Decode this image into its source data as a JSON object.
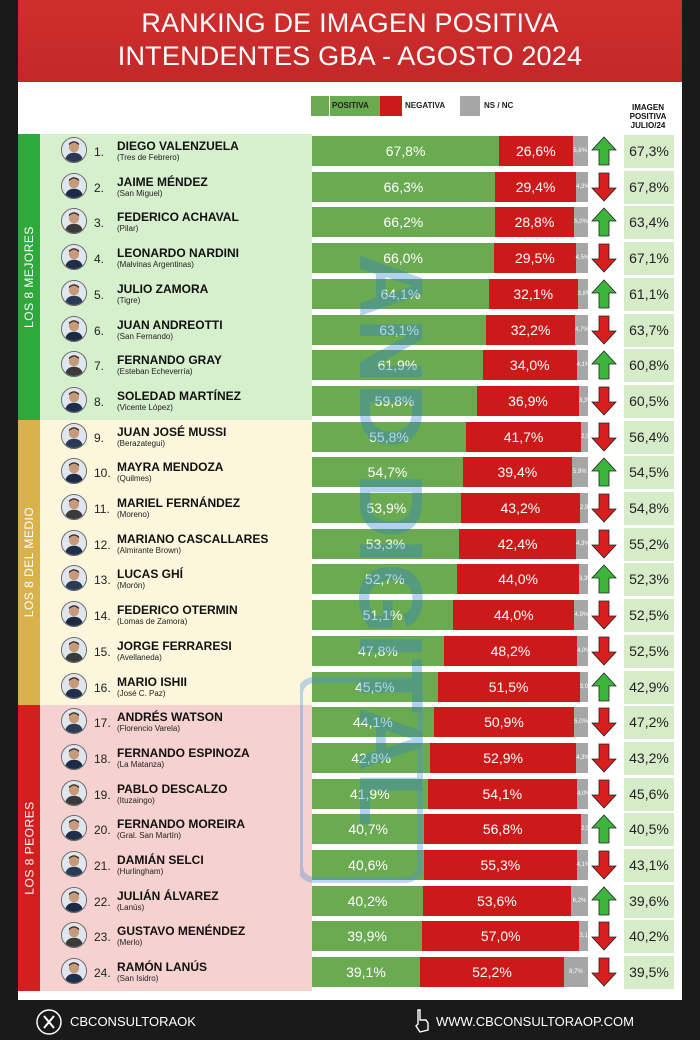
{
  "header": {
    "title_line1": "RANKING DE IMAGEN POSITIVA",
    "title_line2": "INTENDENTES GBA - AGOSTO 2024"
  },
  "legend": {
    "positiva": "POSITIVA",
    "negativa": "NEGATIVA",
    "nsnc": "NS / NC"
  },
  "julio_header": {
    "line1": "IMAGEN",
    "line2": "POSITIVA",
    "line3": "JULIO/24"
  },
  "groups": [
    {
      "label": "LOS 8 MEJORES",
      "color": "#2eaa3c",
      "bg": "#d6efcd"
    },
    {
      "label": "LOS 8 DEL MEDIO",
      "color": "#d9b34a",
      "bg": "#fbf6dc"
    },
    {
      "label": "LOS 8 PEORES",
      "color": "#d41f1f",
      "bg": "#f5d1cf"
    }
  ],
  "colors": {
    "positiva": "#6aaa50",
    "negativa": "#cc1a1a",
    "nsnc": "#a6a6a6",
    "arrow_up": "#3bb53b",
    "arrow_down": "#d81e1e"
  },
  "chart_data": {
    "type": "bar",
    "stacked": true,
    "orientation": "horizontal",
    "title": "RANKING DE IMAGEN POSITIVA INTENDENTES GBA - AGOSTO 2024",
    "xlim": [
      0,
      100
    ],
    "legend_position": "top",
    "series": [
      {
        "name": "POSITIVA",
        "values": [
          67.8,
          66.3,
          66.2,
          66.0,
          64.1,
          63.1,
          61.9,
          59.8,
          55.8,
          54.7,
          53.9,
          53.3,
          52.7,
          51.1,
          47.8,
          45.5,
          44.1,
          42.8,
          41.9,
          40.7,
          40.6,
          40.2,
          39.9,
          39.1
        ]
      },
      {
        "name": "NEGATIVA",
        "values": [
          26.6,
          29.4,
          28.8,
          29.5,
          32.1,
          32.2,
          34.0,
          36.9,
          41.7,
          39.4,
          43.2,
          42.4,
          44.0,
          44.0,
          48.2,
          51.5,
          50.9,
          52.9,
          54.1,
          56.8,
          55.3,
          53.6,
          57.0,
          52.2
        ]
      },
      {
        "name": "NS / NC",
        "values": [
          5.6,
          4.3,
          5.0,
          4.5,
          3.8,
          4.7,
          4.1,
          3.3,
          2.5,
          5.9,
          2.9,
          4.3,
          3.3,
          4.9,
          4.0,
          3.0,
          5.0,
          4.3,
          4.0,
          2.5,
          4.1,
          6.2,
          3.1,
          8.7
        ]
      }
    ],
    "rows": [
      {
        "rank": "1.",
        "name": "DIEGO VALENZUELA",
        "district": "(Tres de Febrero)",
        "positiva": "67,8%",
        "negativa": "26,6%",
        "nsnc": "5,6%",
        "trend": "up",
        "julio": "67,3%"
      },
      {
        "rank": "2.",
        "name": "JAIME MÉNDEZ",
        "district": "(San Miguel)",
        "positiva": "66,3%",
        "negativa": "29,4%",
        "nsnc": "4,3%",
        "trend": "down",
        "julio": "67,8%"
      },
      {
        "rank": "3.",
        "name": "FEDERICO ACHAVAL",
        "district": "(Pilar)",
        "positiva": "66,2%",
        "negativa": "28,8%",
        "nsnc": "5,0%",
        "trend": "up",
        "julio": "63,4%"
      },
      {
        "rank": "4.",
        "name": "LEONARDO NARDINI",
        "district": "(Malvinas Argentinas)",
        "positiva": "66,0%",
        "negativa": "29,5%",
        "nsnc": "4,5%",
        "trend": "down",
        "julio": "67,1%"
      },
      {
        "rank": "5.",
        "name": "JULIO ZAMORA",
        "district": "(Tigre)",
        "positiva": "64,1%",
        "negativa": "32,1%",
        "nsnc": "3,8%",
        "trend": "up",
        "julio": "61,1%"
      },
      {
        "rank": "6.",
        "name": "JUAN ANDREOTTI",
        "district": "(San Fernando)",
        "positiva": "63,1%",
        "negativa": "32,2%",
        "nsnc": "4,7%",
        "trend": "down",
        "julio": "63,7%"
      },
      {
        "rank": "7.",
        "name": "FERNANDO GRAY",
        "district": "(Esteban Echeverría)",
        "positiva": "61,9%",
        "negativa": "34,0%",
        "nsnc": "4,1%",
        "trend": "up",
        "julio": "60,8%"
      },
      {
        "rank": "8.",
        "name": "SOLEDAD MARTÍNEZ",
        "district": "(Vicente López)",
        "positiva": "59,8%",
        "negativa": "36,9%",
        "nsnc": "3,3%",
        "trend": "down",
        "julio": "60,5%"
      },
      {
        "rank": "9.",
        "name": "JUAN JOSÉ MUSSI",
        "district": "(Berazategui)",
        "positiva": "55,8%",
        "negativa": "41,7%",
        "nsnc": "2,5%",
        "trend": "down",
        "julio": "56,4%"
      },
      {
        "rank": "10.",
        "name": "MAYRA MENDOZA",
        "district": "(Quilmes)",
        "positiva": "54,7%",
        "negativa": "39,4%",
        "nsnc": "5,9%",
        "trend": "up",
        "julio": "54,5%"
      },
      {
        "rank": "11.",
        "name": "MARIEL FERNÁNDEZ",
        "district": "(Moreno)",
        "positiva": "53,9%",
        "negativa": "43,2%",
        "nsnc": "2,9%",
        "trend": "down",
        "julio": "54,8%"
      },
      {
        "rank": "12.",
        "name": "MARIANO CASCALLARES",
        "district": "(Almirante Brown)",
        "positiva": "53,3%",
        "negativa": "42,4%",
        "nsnc": "4,3%",
        "trend": "down",
        "julio": "55,2%"
      },
      {
        "rank": "13.",
        "name": "LUCAS GHÍ",
        "district": "(Morón)",
        "positiva": "52,7%",
        "negativa": "44,0%",
        "nsnc": "3,3%",
        "trend": "up",
        "julio": "52,3%"
      },
      {
        "rank": "14.",
        "name": "FEDERICO OTERMIN",
        "district": "(Lomas de Zamora)",
        "positiva": "51,1%",
        "negativa": "44,0%",
        "nsnc": "4,9%",
        "trend": "down",
        "julio": "52,5%"
      },
      {
        "rank": "15.",
        "name": "JORGE FERRARESI",
        "district": "(Avellaneda)",
        "positiva": "47,8%",
        "negativa": "48,2%",
        "nsnc": "4,0%",
        "trend": "down",
        "julio": "52,5%"
      },
      {
        "rank": "16.",
        "name": "MARIO ISHII",
        "district": "(José C. Paz)",
        "positiva": "45,5%",
        "negativa": "51,5%",
        "nsnc": "3,0%",
        "trend": "up",
        "julio": "42,9%"
      },
      {
        "rank": "17.",
        "name": "ANDRÉS WATSON",
        "district": "(Florencio Varela)",
        "positiva": "44,1%",
        "negativa": "50,9%",
        "nsnc": "5,0%",
        "trend": "down",
        "julio": "47,2%"
      },
      {
        "rank": "18.",
        "name": "FERNANDO ESPINOZA",
        "district": "(La Matanza)",
        "positiva": "42,8%",
        "negativa": "52,9%",
        "nsnc": "4,3%",
        "trend": "down",
        "julio": "43,2%"
      },
      {
        "rank": "19.",
        "name": "PABLO DESCALZO",
        "district": "(Ituzaingo)",
        "positiva": "41,9%",
        "negativa": "54,1%",
        "nsnc": "4,0%",
        "trend": "down",
        "julio": "45,6%"
      },
      {
        "rank": "20.",
        "name": "FERNANDO MOREIRA",
        "district": "(Gral. San Martín)",
        "positiva": "40,7%",
        "negativa": "56,8%",
        "nsnc": "2,5%",
        "trend": "up",
        "julio": "40,5%"
      },
      {
        "rank": "21.",
        "name": "DAMIÁN SELCI",
        "district": "(Hurlingham)",
        "positiva": "40,6%",
        "negativa": "55,3%",
        "nsnc": "4,1%",
        "trend": "down",
        "julio": "43,1%"
      },
      {
        "rank": "22.",
        "name": "JULIÁN ÁLVAREZ",
        "district": "(Lanús)",
        "positiva": "40,2%",
        "negativa": "53,6%",
        "nsnc": "6,2%",
        "trend": "up",
        "julio": "39,6%"
      },
      {
        "rank": "23.",
        "name": "GUSTAVO MENÉNDEZ",
        "district": "(Merlo)",
        "positiva": "39,9%",
        "negativa": "57,0%",
        "nsnc": "3,1%",
        "trend": "down",
        "julio": "40,2%"
      },
      {
        "rank": "24.",
        "name": "RAMÓN LANÚS",
        "district": "(San Isidro)",
        "positiva": "39,1%",
        "negativa": "52,2%",
        "nsnc": "8,7%",
        "trend": "down",
        "julio": "39,5%"
      }
    ]
  },
  "watermark": {
    "text": "AND DIGITAL"
  },
  "footer": {
    "left_icon": "x-logo-icon",
    "left_text": "CBCONSULTORAOK",
    "right_icon": "hand-pointer-icon",
    "right_text": "WWW.CBCONSULTORAOP.COM"
  }
}
